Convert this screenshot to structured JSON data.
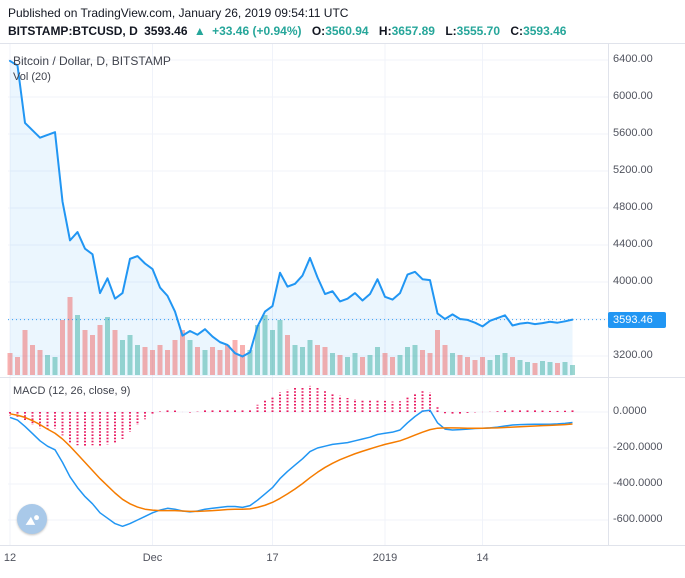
{
  "header": {
    "published_line": "Published on TradingView.com, January 26, 2019 09:54:11 UTC",
    "symbol_interval": "BITSTAMP:BTCUSD, D",
    "last_price": "3593.46",
    "change_arrow": "▲",
    "change_text": "+33.46 (+0.94%)",
    "o_label": "O:",
    "o_value": "3560.94",
    "h_label": "H:",
    "h_value": "3657.89",
    "l_label": "L:",
    "l_value": "3555.70",
    "c_label": "C:",
    "c_value": "3593.46"
  },
  "main_pane": {
    "legend_title": "Bitcoin / Dollar, D, BITSTAMP",
    "legend_vol": "Vol (20)"
  },
  "macd_pane": {
    "legend": "MACD (12, 26, close, 9)"
  },
  "price_axis": {
    "ticks": [
      {
        "value": 6400,
        "label": "6400.00"
      },
      {
        "value": 6000,
        "label": "6000.00"
      },
      {
        "value": 5600,
        "label": "5600.00"
      },
      {
        "value": 5200,
        "label": "5200.00"
      },
      {
        "value": 4800,
        "label": "4800.00"
      },
      {
        "value": 4400,
        "label": "4400.00"
      },
      {
        "value": 4000,
        "label": "4000.00"
      },
      {
        "value": 3200,
        "label": "3200.00"
      }
    ],
    "badge": "3593.46"
  },
  "macd_axis": {
    "ticks": [
      {
        "value": 0,
        "label": "0.0000"
      },
      {
        "value": -200,
        "label": "-200.0000"
      },
      {
        "value": -400,
        "label": "-400.0000"
      },
      {
        "value": -600,
        "label": "-600.0000"
      }
    ]
  },
  "icons": {
    "watermark": "tradingview-logo",
    "up_arrow": "▲"
  },
  "colors": {
    "up_green": "#26a69a",
    "price_line": "#2196f3",
    "price_fill": "rgba(33,150,243,0.09)",
    "vol_up": "rgba(38,166,154,0.45)",
    "vol_down": "rgba(239,83,80,0.45)",
    "hist_pink": "#e91e63",
    "macd_blue": "#2196f3",
    "signal_orange": "#f57c00",
    "badge_bg": "#2196f3",
    "grid": "#f0f3fa",
    "border": "#e0e3eb",
    "axis_text": "#50535e",
    "text_dark": "#131722"
  },
  "chart_data": {
    "type": "line",
    "title": "Bitcoin / Dollar, D, BITSTAMP",
    "legend_position": "top-left",
    "grid": true,
    "x_labels": [
      {
        "text": "12",
        "i": 0
      },
      {
        "text": "Dec",
        "i": 19
      },
      {
        "text": "17",
        "i": 35
      },
      {
        "text": "2019",
        "i": 50
      },
      {
        "text": "14",
        "i": 63
      }
    ],
    "panes": [
      {
        "name": "price",
        "last_price": 3593.46,
        "ylim": [
          2970,
          6570
        ],
        "y_gridlines": [
          6400,
          6000,
          5600,
          5200,
          4800,
          4400,
          4000,
          3600,
          3200
        ],
        "series": [
          {
            "name": "close",
            "type": "area",
            "values": [
              6390,
              6340,
              5720,
              5640,
              5560,
              5590,
              5620,
              4870,
              4450,
              4540,
              4360,
              4300,
              3880,
              4040,
              3820,
              3880,
              4250,
              4280,
              4200,
              4140,
              3940,
              3850,
              3680,
              3420,
              3470,
              3430,
              3490,
              3410,
              3350,
              3320,
              3230,
              3195,
              3240,
              3520,
              3680,
              3740,
              4100,
              3950,
              3980,
              4070,
              4260,
              4050,
              3870,
              3900,
              3790,
              3820,
              3880,
              3800,
              3870,
              4030,
              3840,
              3810,
              3880,
              4080,
              4110,
              4030,
              4020,
              3660,
              3600,
              3650,
              3600,
              3590,
              3560,
              3520,
              3580,
              3610,
              3640,
              3530,
              3550,
              3560,
              3545,
              3555,
              3570,
              3560,
              3575,
              3593
            ]
          },
          {
            "name": "volume",
            "type": "bar",
            "values": [
              22,
              18,
              45,
              30,
              25,
              20,
              18,
              55,
              78,
              60,
              45,
              40,
              50,
              58,
              45,
              35,
              40,
              30,
              28,
              25,
              30,
              25,
              35,
              45,
              35,
              28,
              25,
              28,
              25,
              30,
              35,
              30,
              25,
              50,
              60,
              45,
              55,
              40,
              30,
              28,
              35,
              30,
              28,
              22,
              20,
              18,
              22,
              18,
              20,
              28,
              22,
              18,
              20,
              28,
              30,
              25,
              22,
              45,
              30,
              22,
              20,
              18,
              15,
              18,
              15,
              20,
              22,
              18,
              15,
              13,
              12,
              14,
              13,
              12,
              13,
              10
            ]
          }
        ]
      },
      {
        "name": "macd",
        "ylim": [
          -740,
          195
        ],
        "y_gridlines": [
          0,
          -200,
          -400,
          -600
        ],
        "series": [
          {
            "name": "macd",
            "type": "line",
            "values": [
              -30,
              -45,
              -80,
              -120,
              -160,
              -190,
              -210,
              -280,
              -360,
              -420,
              -470,
              -510,
              -560,
              -590,
              -620,
              -635,
              -620,
              -600,
              -580,
              -560,
              -545,
              -535,
              -540,
              -550,
              -555,
              -550,
              -540,
              -535,
              -530,
              -525,
              -525,
              -530,
              -520,
              -490,
              -455,
              -420,
              -370,
              -330,
              -295,
              -260,
              -220,
              -200,
              -190,
              -180,
              -175,
              -170,
              -160,
              -150,
              -140,
              -125,
              -118,
              -112,
              -100,
              -60,
              -25,
              5,
              10,
              -60,
              -95,
              -100,
              -98,
              -95,
              -92,
              -90,
              -88,
              -84,
              -78,
              -72,
              -70,
              -69,
              -68,
              -68,
              -68,
              -66,
              -63,
              -58
            ]
          },
          {
            "name": "signal",
            "type": "line",
            "values": [
              -10,
              -18,
              -30,
              -48,
              -70,
              -95,
              -118,
              -150,
              -190,
              -235,
              -280,
              -325,
              -370,
              -410,
              -450,
              -485,
              -510,
              -528,
              -540,
              -545,
              -548,
              -548,
              -548,
              -550,
              -552,
              -552,
              -550,
              -548,
              -545,
              -542,
              -540,
              -540,
              -538,
              -530,
              -518,
              -502,
              -480,
              -455,
              -428,
              -398,
              -365,
              -335,
              -308,
              -285,
              -265,
              -248,
              -232,
              -218,
              -205,
              -192,
              -180,
              -170,
              -160,
              -145,
              -128,
              -112,
              -98,
              -90,
              -88,
              -88,
              -89,
              -90,
              -90,
              -90,
              -89,
              -88,
              -86,
              -84,
              -82,
              -80,
              -78,
              -76,
              -74,
              -72,
              -70,
              -67
            ]
          },
          {
            "name": "histogram",
            "type": "bar",
            "derived": "macd_minus_signal"
          }
        ]
      }
    ]
  }
}
